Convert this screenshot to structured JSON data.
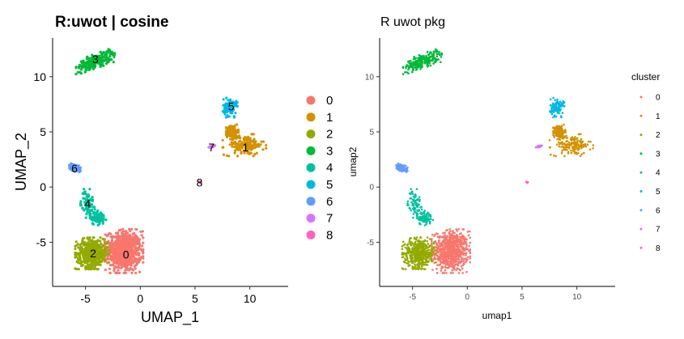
{
  "colors": {
    "0": "#F8766D",
    "1": "#D39200",
    "2": "#93AA00",
    "3": "#00BA38",
    "4": "#00C19F",
    "5": "#00B9E3",
    "6": "#619CFF",
    "7": "#DB72FB",
    "8": "#FF61C3"
  },
  "chart_data": [
    {
      "type": "scatter",
      "title": "R:uwot | cosine",
      "xlabel": "UMAP_1",
      "ylabel": "UMAP_2",
      "xlim": [
        -8,
        13.5
      ],
      "ylim": [
        -9,
        13.5
      ],
      "xticks": [
        -5,
        0,
        5,
        10
      ],
      "yticks": [
        -5,
        0,
        5,
        10
      ],
      "legend_title": "",
      "legend": [
        "0",
        "1",
        "2",
        "3",
        "4",
        "5",
        "6",
        "7",
        "8"
      ],
      "cluster_labels": [
        {
          "label": "0",
          "x": -1.3,
          "y": -6.1
        },
        {
          "label": "1",
          "x": 9.6,
          "y": 3.6
        },
        {
          "label": "2",
          "x": -4.3,
          "y": -6.0
        },
        {
          "label": "3",
          "x": -4.1,
          "y": 11.6
        },
        {
          "label": "4",
          "x": -4.8,
          "y": -1.5
        },
        {
          "label": "5",
          "x": 8.3,
          "y": 7.3
        },
        {
          "label": "6",
          "x": -6.0,
          "y": 1.7
        },
        {
          "label": "7",
          "x": 6.5,
          "y": 3.6
        },
        {
          "label": "8",
          "x": 5.4,
          "y": 0.4
        }
      ]
    },
    {
      "type": "scatter",
      "title": "R uwot pkg",
      "xlabel": "umap1",
      "ylabel": "umap2",
      "xlim": [
        -8,
        13.5
      ],
      "ylim": [
        -9,
        13.5
      ],
      "xticks": [
        -5,
        0,
        5,
        10
      ],
      "yticks": [
        -5,
        0,
        5,
        10
      ],
      "legend_title": "cluster",
      "legend": [
        "0",
        "1",
        "2",
        "3",
        "4",
        "5",
        "6",
        "7",
        "8"
      ],
      "cluster_labels": []
    }
  ],
  "clusters": [
    {
      "id": "0",
      "n": 700,
      "blobs": [
        [
          -1.5,
          -5.8,
          1.6,
          1.8
        ]
      ]
    },
    {
      "id": "1",
      "n": 300,
      "blobs": [
        [
          9.5,
          3.8,
          1.8,
          0.9
        ],
        [
          8.4,
          5.0,
          0.5,
          0.6
        ]
      ]
    },
    {
      "id": "2",
      "n": 450,
      "blobs": [
        [
          -4.4,
          -6.0,
          1.4,
          1.3
        ]
      ]
    },
    {
      "id": "3",
      "n": 250,
      "blobs": [
        [
          -4.1,
          11.4,
          1.6,
          0.6
        ]
      ]
    },
    {
      "id": "4",
      "n": 160,
      "blobs": [
        [
          -4.8,
          -1.5,
          0.6,
          1.2
        ],
        [
          -3.9,
          -2.8,
          0.7,
          0.6
        ]
      ]
    },
    {
      "id": "5",
      "n": 110,
      "blobs": [
        [
          8.2,
          7.2,
          0.6,
          0.8
        ]
      ]
    },
    {
      "id": "6",
      "n": 100,
      "blobs": [
        [
          -6.0,
          1.75,
          0.5,
          0.3
        ]
      ]
    },
    {
      "id": "7",
      "n": 14,
      "blobs": [
        [
          6.6,
          3.7,
          0.4,
          0.12
        ]
      ]
    },
    {
      "id": "8",
      "n": 6,
      "blobs": [
        [
          5.4,
          0.4,
          0.12,
          0.12
        ]
      ]
    }
  ]
}
